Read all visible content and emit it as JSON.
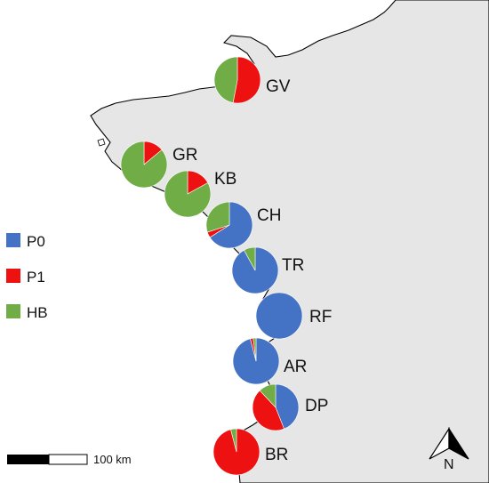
{
  "legend": [
    {
      "key": "P0",
      "label": "P0",
      "color": "#4472c4"
    },
    {
      "key": "P1",
      "label": "P1",
      "color": "#ee1111"
    },
    {
      "key": "HB",
      "label": "HB",
      "color": "#70ad47"
    }
  ],
  "sites": [
    {
      "id": "GV",
      "label": "GV",
      "composition": {
        "P0": 0.0,
        "P1": 0.53,
        "HB": 0.47
      }
    },
    {
      "id": "GR",
      "label": "GR",
      "composition": {
        "P0": 0.0,
        "P1": 0.14,
        "HB": 0.86
      }
    },
    {
      "id": "KB",
      "label": "KB",
      "composition": {
        "P0": 0.0,
        "P1": 0.17,
        "HB": 0.83
      }
    },
    {
      "id": "CH",
      "label": "CH",
      "composition": {
        "P0": 0.66,
        "P1": 0.04,
        "HB": 0.3
      }
    },
    {
      "id": "TR",
      "label": "TR",
      "composition": {
        "P0": 0.92,
        "P1": 0.0,
        "HB": 0.08
      }
    },
    {
      "id": "RF",
      "label": "RF",
      "composition": {
        "P0": 1.0,
        "P1": 0.0,
        "HB": 0.0
      }
    },
    {
      "id": "AR",
      "label": "AR",
      "composition": {
        "P0": 0.96,
        "P1": 0.02,
        "HB": 0.02
      }
    },
    {
      "id": "DP",
      "label": "DP",
      "composition": {
        "P0": 0.44,
        "P1": 0.44,
        "HB": 0.12
      }
    },
    {
      "id": "BR",
      "label": "BR",
      "composition": {
        "P0": 0.0,
        "P1": 0.96,
        "HB": 0.04
      }
    }
  ],
  "scale_bar": {
    "label": "100 km"
  },
  "north_arrow": {
    "label": "N"
  }
}
